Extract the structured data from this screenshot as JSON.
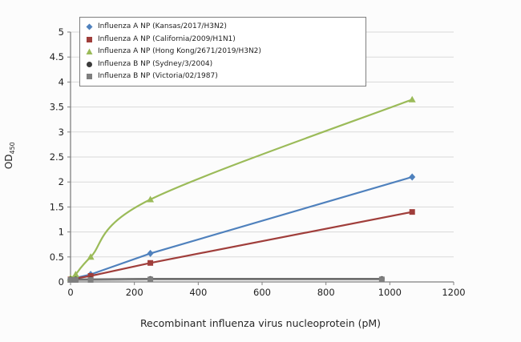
{
  "chart_data": {
    "type": "line",
    "title": "",
    "xlabel": "Recombinant influenza virus nucleoprotein (pM)",
    "ylabel": "OD",
    "ylabel_sub": "450",
    "xlim": [
      0,
      1200
    ],
    "ylim": [
      0,
      5
    ],
    "x_ticks": [
      0,
      200,
      400,
      600,
      800,
      1000,
      1200
    ],
    "y_ticks": [
      0,
      0.5,
      1,
      1.5,
      2,
      2.5,
      3,
      3.5,
      4,
      4.5,
      5
    ],
    "grid": "horizontal",
    "legend_position": "top-left",
    "axis_color": "#808080",
    "grid_color": "#d9d9d9",
    "tick_label_color": "#1f1f1f",
    "series": [
      {
        "name": "Influenza A NP (Kansas/2017/H3N2)",
        "color": "#4f81bd",
        "marker": "diamond",
        "smooth": false,
        "x": [
          0,
          16,
          63,
          250,
          1070
        ],
        "y": [
          0.06,
          0.08,
          0.15,
          0.57,
          2.1
        ]
      },
      {
        "name": "Influenza A NP (California/2009/H1N1)",
        "color": "#a03e3b",
        "marker": "square",
        "smooth": false,
        "x": [
          0,
          16,
          63,
          250,
          1070
        ],
        "y": [
          0.05,
          0.07,
          0.12,
          0.38,
          1.4
        ]
      },
      {
        "name": "Influenza A NP (Hong Kong/2671/2019/H3N2)",
        "color": "#9bbb59",
        "marker": "triangle",
        "smooth": true,
        "x": [
          0,
          16,
          63,
          250,
          1070
        ],
        "y": [
          0.08,
          0.15,
          0.5,
          1.65,
          3.65
        ]
      },
      {
        "name": "Influenza B NP (Sydney/3/2004)",
        "color": "#3b3b3b",
        "marker": "circle",
        "smooth": false,
        "x": [
          0,
          16,
          63,
          250,
          975
        ],
        "y": [
          0.05,
          0.05,
          0.05,
          0.06,
          0.06
        ]
      },
      {
        "name": "Influenza B NP (Victoria/02/1987)",
        "color": "#7f7f7f",
        "marker": "square",
        "smooth": false,
        "x": [
          0,
          16,
          63,
          250,
          975
        ],
        "y": [
          0.04,
          0.04,
          0.04,
          0.05,
          0.05
        ]
      }
    ]
  }
}
